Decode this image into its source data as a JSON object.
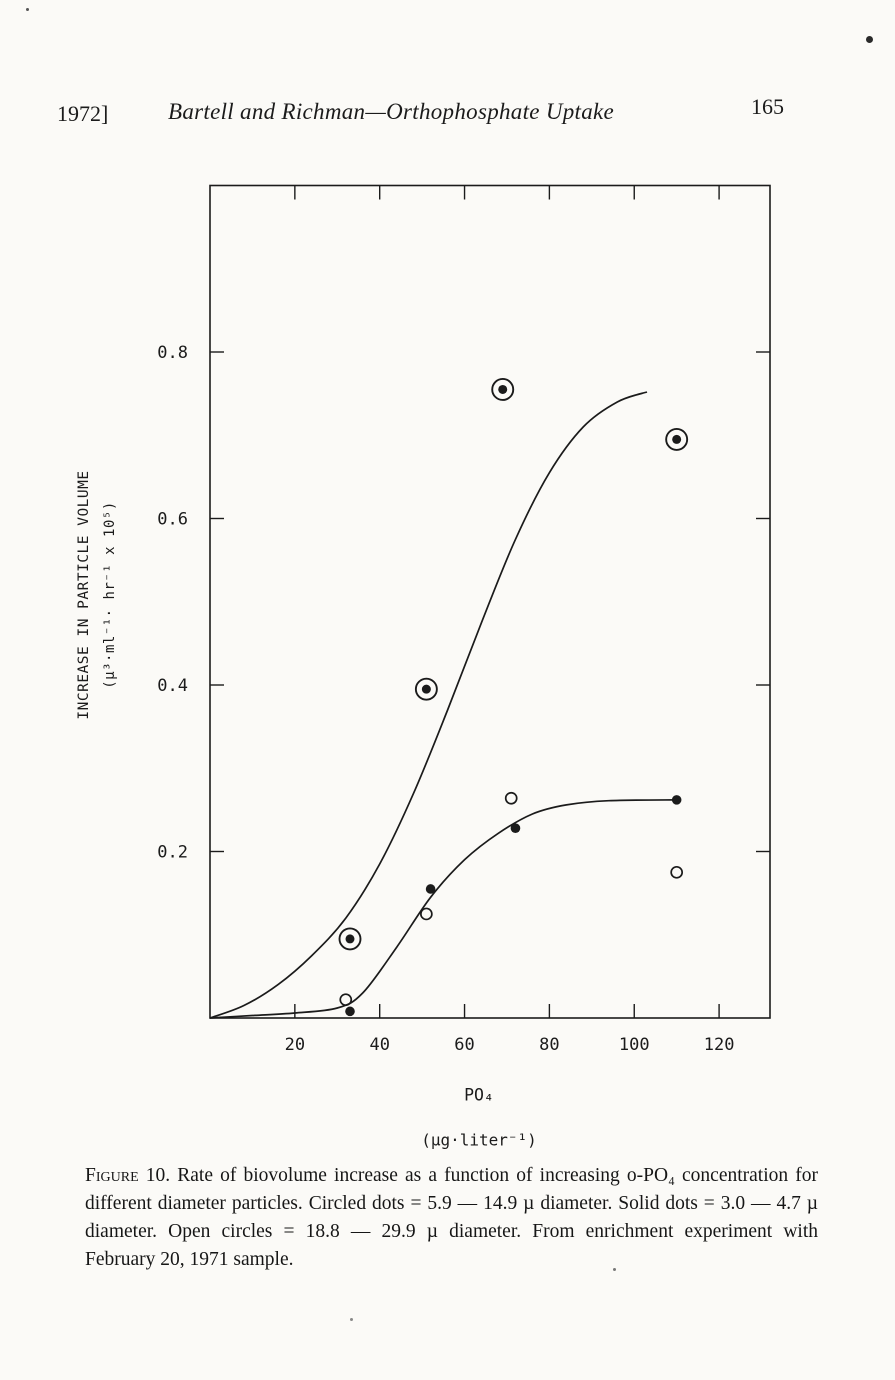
{
  "colors": {
    "ink": "#1b1b1b",
    "paper": "#fbfaf7"
  },
  "header": {
    "year_bracket": "1972]",
    "running_title": "Bartell and Richman—Orthophosphate Uptake",
    "page_number": "165"
  },
  "chart_data": {
    "type": "scatter",
    "xlabel": "PO₄",
    "xlabel_units": "(µg·liter⁻¹)",
    "ylabel": "INCREASE IN PARTICLE VOLUME",
    "ylabel_units": "(µ³·ml⁻¹· hr⁻¹ x 10⁵)",
    "xlim": [
      0,
      132
    ],
    "ylim": [
      0,
      1.0
    ],
    "xticks": [
      20,
      40,
      60,
      80,
      100,
      120
    ],
    "xtick_labels": [
      "20",
      "40",
      "60",
      "80",
      "100",
      "120"
    ],
    "yticks": [
      0.2,
      0.4,
      0.6,
      0.8
    ],
    "ytick_labels": [
      "0.2",
      "0.4",
      "0.6",
      "0.8"
    ],
    "grid": false,
    "series": [
      {
        "name": "circled dots = 5.9 — 14.9 µ diameter",
        "marker": "circled-dot",
        "points": [
          [
            33,
            0.095
          ],
          [
            51,
            0.395
          ],
          [
            69,
            0.755
          ],
          [
            110,
            0.695
          ]
        ]
      },
      {
        "name": "solid dots = 3.0 — 4.7 µ diameter",
        "marker": "solid-dot",
        "points": [
          [
            33,
            0.008
          ],
          [
            52,
            0.155
          ],
          [
            72,
            0.228
          ],
          [
            110,
            0.262
          ]
        ]
      },
      {
        "name": "open circles = 18.8 — 29.9 µ diameter",
        "marker": "open-circle",
        "points": [
          [
            32,
            0.022
          ],
          [
            51,
            0.125
          ],
          [
            71,
            0.264
          ],
          [
            110,
            0.175
          ]
        ]
      }
    ],
    "curves": [
      {
        "name": "upper-fitted-curve",
        "points": [
          [
            0,
            0
          ],
          [
            8,
            0.015
          ],
          [
            16,
            0.04
          ],
          [
            24,
            0.075
          ],
          [
            32,
            0.12
          ],
          [
            40,
            0.185
          ],
          [
            48,
            0.27
          ],
          [
            56,
            0.37
          ],
          [
            64,
            0.475
          ],
          [
            72,
            0.575
          ],
          [
            80,
            0.655
          ],
          [
            88,
            0.71
          ],
          [
            96,
            0.74
          ],
          [
            103,
            0.752
          ]
        ]
      },
      {
        "name": "lower-fitted-curve",
        "points": [
          [
            0,
            0
          ],
          [
            10,
            0.003
          ],
          [
            20,
            0.006
          ],
          [
            30,
            0.012
          ],
          [
            36,
            0.03
          ],
          [
            44,
            0.085
          ],
          [
            52,
            0.145
          ],
          [
            60,
            0.19
          ],
          [
            68,
            0.222
          ],
          [
            76,
            0.245
          ],
          [
            84,
            0.256
          ],
          [
            94,
            0.261
          ],
          [
            110,
            0.262
          ]
        ]
      }
    ]
  },
  "caption": {
    "label": "Figure 10.",
    "text": "Rate of biovolume increase as a function of increasing o-PO₄ concentration for different diameter particles. Circled dots = 5.9 — 14.9 µ diameter. Solid dots = 3.0 — 4.7 µ diameter. Open circles = 18.8 — 29.9 µ diameter. From enrichment experiment with February 20, 1971 sample."
  }
}
